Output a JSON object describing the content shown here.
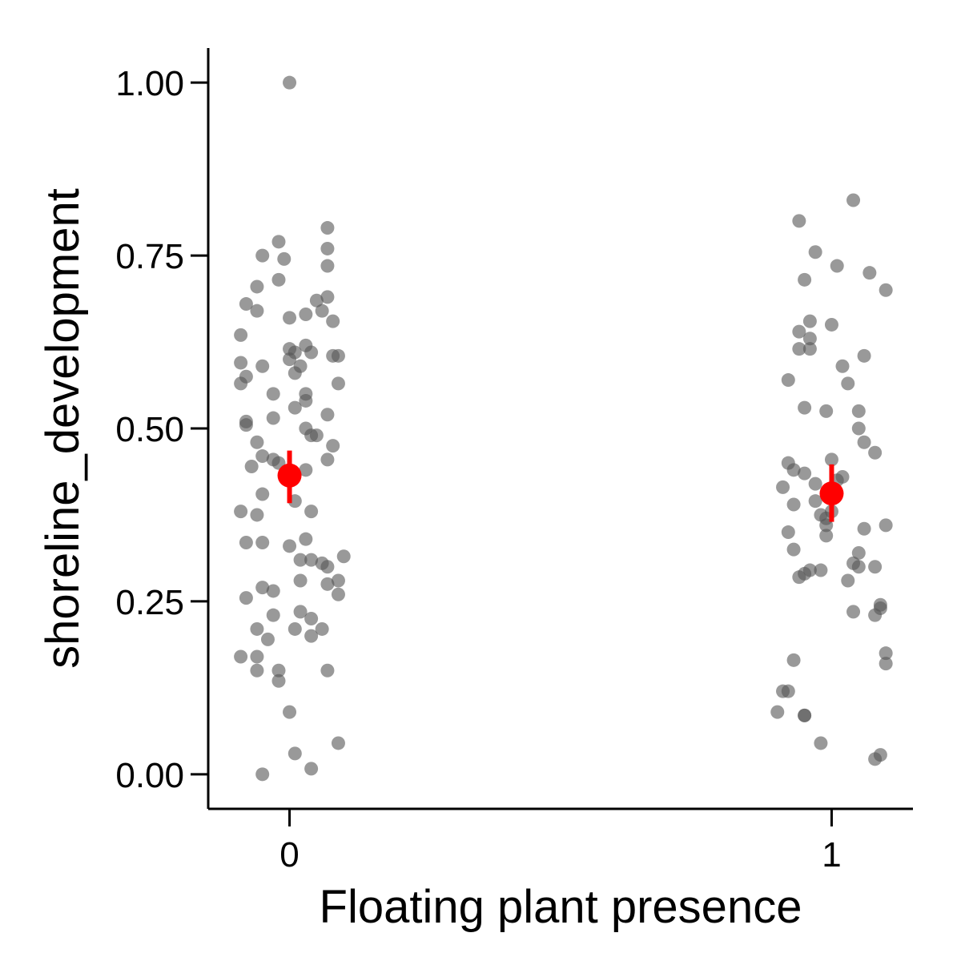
{
  "chart_data": {
    "type": "scatter",
    "title": "",
    "xlabel": "Floating plant presence",
    "ylabel": "shoreline_development",
    "x_categories": [
      "0",
      "1"
    ],
    "y_ticks": [
      "0.00",
      "0.25",
      "0.50",
      "0.75",
      "1.00"
    ],
    "y_tick_values": [
      0,
      0.25,
      0.5,
      0.75,
      1.0
    ],
    "ylim": [
      -0.05,
      1.05
    ],
    "xlim": [
      -0.15,
      1.15
    ],
    "grid": false,
    "colors": {
      "points": "#555555",
      "summary": "#ff0000",
      "axis": "#000000"
    },
    "series": [
      {
        "category": "0",
        "points": [
          [
            0.0,
            1.0
          ],
          [
            0.07,
            0.79
          ],
          [
            -0.02,
            0.77
          ],
          [
            -0.05,
            0.75
          ],
          [
            0.07,
            0.76
          ],
          [
            -0.01,
            0.745
          ],
          [
            0.07,
            0.735
          ],
          [
            -0.02,
            0.715
          ],
          [
            -0.06,
            0.705
          ],
          [
            0.07,
            0.69
          ],
          [
            0.05,
            0.685
          ],
          [
            -0.08,
            0.68
          ],
          [
            -0.06,
            0.67
          ],
          [
            0.06,
            0.67
          ],
          [
            0.03,
            0.665
          ],
          [
            0.0,
            0.66
          ],
          [
            0.08,
            0.655
          ],
          [
            -0.09,
            0.635
          ],
          [
            0.03,
            0.62
          ],
          [
            0.0,
            0.615
          ],
          [
            0.04,
            0.61
          ],
          [
            0.01,
            0.61
          ],
          [
            0.08,
            0.605
          ],
          [
            0.09,
            0.605
          ],
          [
            0.0,
            0.6
          ],
          [
            -0.09,
            0.595
          ],
          [
            -0.05,
            0.59
          ],
          [
            0.02,
            0.59
          ],
          [
            0.01,
            0.58
          ],
          [
            -0.08,
            0.575
          ],
          [
            0.09,
            0.565
          ],
          [
            -0.09,
            0.565
          ],
          [
            -0.03,
            0.55
          ],
          [
            0.03,
            0.55
          ],
          [
            0.03,
            0.54
          ],
          [
            0.01,
            0.53
          ],
          [
            -0.03,
            0.515
          ],
          [
            0.07,
            0.52
          ],
          [
            -0.08,
            0.51
          ],
          [
            -0.08,
            0.505
          ],
          [
            0.03,
            0.5
          ],
          [
            0.05,
            0.49
          ],
          [
            0.04,
            0.49
          ],
          [
            -0.06,
            0.48
          ],
          [
            0.08,
            0.475
          ],
          [
            -0.05,
            0.46
          ],
          [
            0.07,
            0.455
          ],
          [
            -0.03,
            0.455
          ],
          [
            -0.02,
            0.45
          ],
          [
            -0.07,
            0.445
          ],
          [
            0.03,
            0.44
          ],
          [
            -0.05,
            0.405
          ],
          [
            0.01,
            0.395
          ],
          [
            0.04,
            0.38
          ],
          [
            -0.09,
            0.38
          ],
          [
            -0.06,
            0.375
          ],
          [
            0.03,
            0.34
          ],
          [
            -0.05,
            0.335
          ],
          [
            0.0,
            0.33
          ],
          [
            -0.08,
            0.335
          ],
          [
            0.1,
            0.315
          ],
          [
            0.02,
            0.31
          ],
          [
            0.04,
            0.31
          ],
          [
            0.06,
            0.305
          ],
          [
            0.07,
            0.3
          ],
          [
            0.09,
            0.28
          ],
          [
            0.02,
            0.28
          ],
          [
            0.07,
            0.275
          ],
          [
            -0.05,
            0.27
          ],
          [
            -0.03,
            0.265
          ],
          [
            0.09,
            0.26
          ],
          [
            -0.08,
            0.255
          ],
          [
            0.02,
            0.235
          ],
          [
            -0.03,
            0.23
          ],
          [
            0.04,
            0.225
          ],
          [
            0.01,
            0.21
          ],
          [
            -0.06,
            0.21
          ],
          [
            0.06,
            0.21
          ],
          [
            0.04,
            0.2
          ],
          [
            -0.04,
            0.195
          ],
          [
            -0.09,
            0.17
          ],
          [
            -0.06,
            0.17
          ],
          [
            -0.02,
            0.15
          ],
          [
            -0.06,
            0.15
          ],
          [
            0.07,
            0.15
          ],
          [
            -0.02,
            0.135
          ],
          [
            0.0,
            0.09
          ],
          [
            0.09,
            0.045
          ],
          [
            0.01,
            0.03
          ],
          [
            0.04,
            0.008
          ],
          [
            -0.05,
            0.0
          ]
        ],
        "mean": 0.432,
        "ci": [
          0.392,
          0.468
        ]
      },
      {
        "category": "1",
        "points": [
          [
            1.04,
            0.83
          ],
          [
            0.94,
            0.8
          ],
          [
            0.97,
            0.755
          ],
          [
            1.01,
            0.735
          ],
          [
            1.07,
            0.725
          ],
          [
            1.1,
            0.7
          ],
          [
            0.95,
            0.715
          ],
          [
            0.96,
            0.655
          ],
          [
            1.0,
            0.65
          ],
          [
            0.94,
            0.64
          ],
          [
            0.96,
            0.63
          ],
          [
            0.94,
            0.615
          ],
          [
            0.96,
            0.615
          ],
          [
            1.06,
            0.605
          ],
          [
            1.02,
            0.59
          ],
          [
            0.92,
            0.57
          ],
          [
            1.03,
            0.565
          ],
          [
            0.95,
            0.53
          ],
          [
            0.99,
            0.525
          ],
          [
            1.05,
            0.525
          ],
          [
            1.05,
            0.5
          ],
          [
            1.06,
            0.48
          ],
          [
            1.08,
            0.465
          ],
          [
            0.92,
            0.45
          ],
          [
            1.0,
            0.455
          ],
          [
            0.93,
            0.44
          ],
          [
            0.95,
            0.435
          ],
          [
            1.02,
            0.43
          ],
          [
            1.01,
            0.425
          ],
          [
            0.97,
            0.42
          ],
          [
            0.91,
            0.415
          ],
          [
            0.97,
            0.395
          ],
          [
            1.0,
            0.38
          ],
          [
            0.93,
            0.39
          ],
          [
            0.98,
            0.375
          ],
          [
            0.99,
            0.37
          ],
          [
            0.99,
            0.36
          ],
          [
            1.1,
            0.36
          ],
          [
            1.06,
            0.355
          ],
          [
            0.92,
            0.35
          ],
          [
            0.99,
            0.345
          ],
          [
            0.93,
            0.325
          ],
          [
            1.05,
            0.32
          ],
          [
            1.04,
            0.305
          ],
          [
            1.05,
            0.3
          ],
          [
            1.08,
            0.3
          ],
          [
            0.98,
            0.295
          ],
          [
            0.96,
            0.295
          ],
          [
            0.95,
            0.29
          ],
          [
            0.94,
            0.285
          ],
          [
            1.03,
            0.28
          ],
          [
            1.09,
            0.245
          ],
          [
            1.09,
            0.24
          ],
          [
            1.04,
            0.235
          ],
          [
            1.08,
            0.23
          ],
          [
            1.1,
            0.175
          ],
          [
            0.93,
            0.165
          ],
          [
            1.1,
            0.16
          ],
          [
            0.92,
            0.12
          ],
          [
            0.91,
            0.12
          ],
          [
            0.9,
            0.09
          ],
          [
            0.95,
            0.085
          ],
          [
            0.95,
            0.085
          ],
          [
            0.98,
            0.045
          ],
          [
            1.09,
            0.028
          ],
          [
            1.08,
            0.022
          ]
        ],
        "mean": 0.406,
        "ci": [
          0.365,
          0.448
        ]
      }
    ]
  }
}
